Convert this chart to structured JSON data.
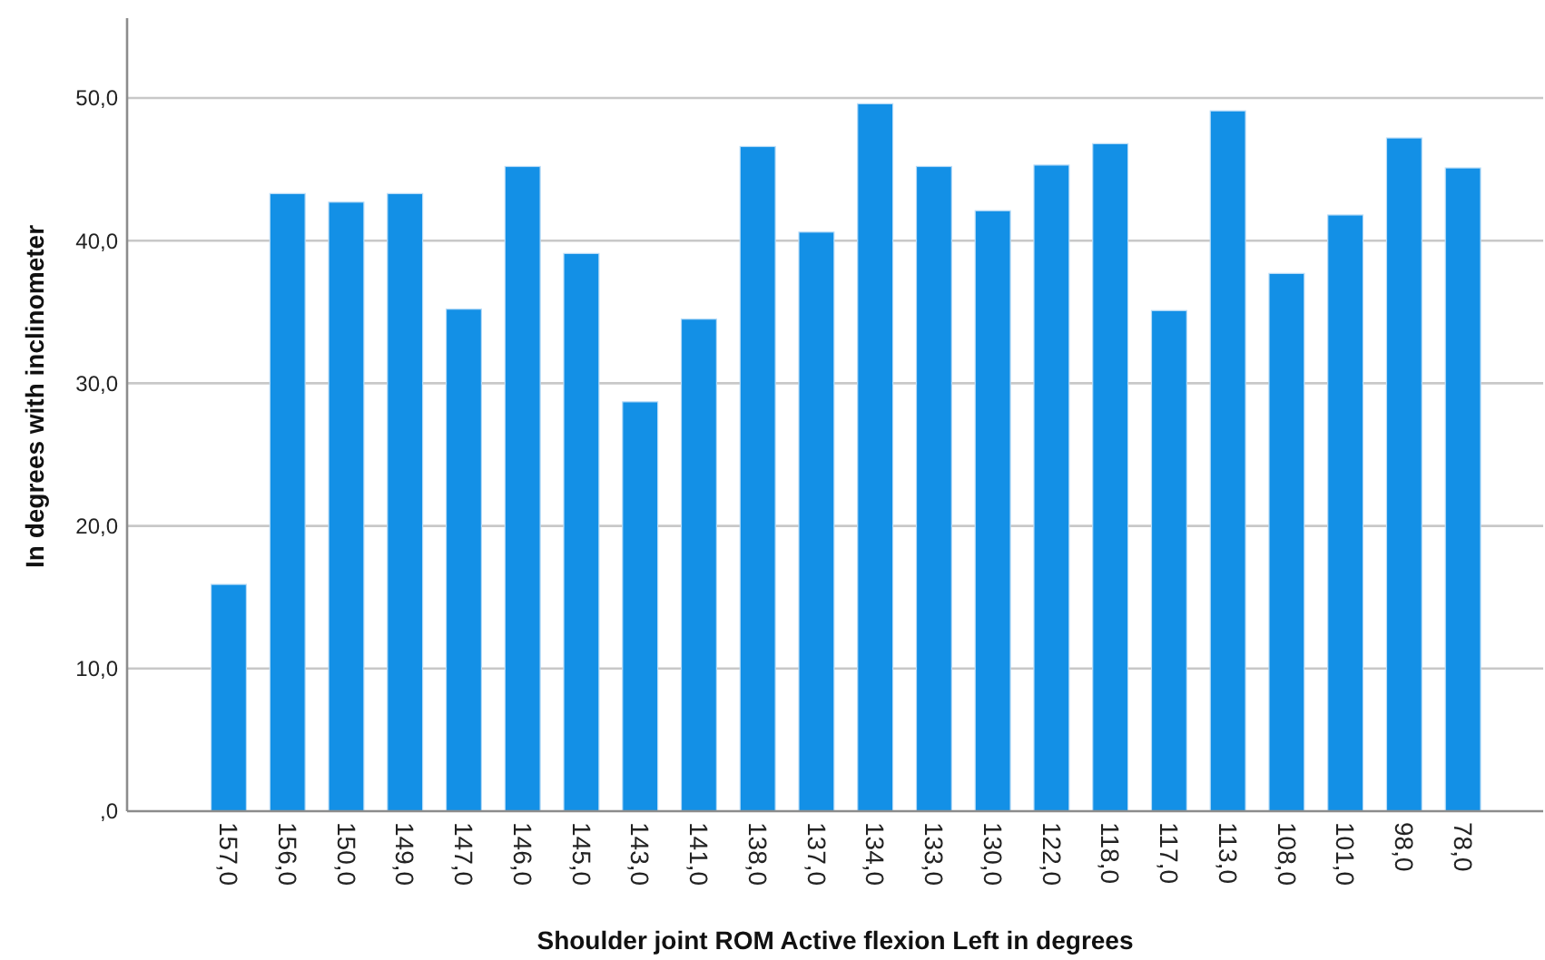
{
  "chart_data": {
    "type": "bar",
    "xlabel": "Shoulder joint ROM Active flexion Left in degrees",
    "ylabel": "In degrees with inclinometer",
    "categories": [
      "157,0",
      "156,0",
      "150,0",
      "149,0",
      "147,0",
      "146,0",
      "145,0",
      "143,0",
      "141,0",
      "138,0",
      "137,0",
      "134,0",
      "133,0",
      "130,0",
      "122,0",
      "118,0",
      "117,0",
      "113,0",
      "108,0",
      "101,0",
      "98,0",
      "78,0"
    ],
    "values": [
      15.9,
      43.3,
      42.7,
      43.3,
      35.2,
      45.2,
      39.1,
      28.7,
      34.5,
      46.6,
      40.6,
      49.6,
      45.2,
      42.1,
      45.3,
      46.8,
      35.1,
      49.1,
      37.7,
      41.8,
      47.2,
      45.1
    ],
    "color": "#1390e6",
    "ylim": [
      0,
      55.6
    ],
    "yticks": [
      {
        "value": 0,
        "label": ",0"
      },
      {
        "value": 10,
        "label": "10,0"
      },
      {
        "value": 20,
        "label": "20,0"
      },
      {
        "value": 30,
        "label": "30,0"
      },
      {
        "value": 40,
        "label": "40,0"
      },
      {
        "value": 50,
        "label": "50,0"
      }
    ],
    "grid": "y"
  }
}
